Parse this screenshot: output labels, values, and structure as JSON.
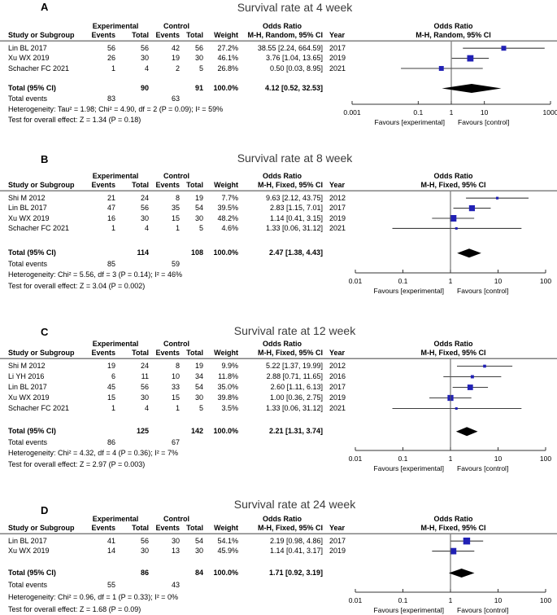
{
  "colors": {
    "square": "#2121b5",
    "diamond": "#000000",
    "ci_line": "#3f3f3f",
    "axis": "#333333",
    "center_line": "#595959",
    "header_rule": "#808080",
    "title_text": "#3b3b3b"
  },
  "table_headers": {
    "group_experimental": "Experimental",
    "group_control": "Control",
    "group_odds_ratio": "Odds Ratio",
    "study": "Study or Subgroup",
    "events": "Events",
    "total": "Total",
    "weight": "Weight",
    "year": "Year"
  },
  "chart_data": [
    {
      "type": "forest",
      "panel": "A",
      "title": "Survival rate at 4 week",
      "effect_label": "M-H, Random, 95% CI",
      "axis": {
        "scale": "log",
        "min": 0.001,
        "max": 1000,
        "ticks": [
          0.001,
          0.1,
          1,
          10,
          1000
        ]
      },
      "favours_left": "Favours [experimental]",
      "favours_right": "Favours [control]",
      "studies": [
        {
          "name": "Lin BL 2017",
          "exp_events": 56,
          "exp_total": 56,
          "ctrl_events": 42,
          "ctrl_total": 56,
          "weight": "27.2%",
          "weight_pct": 27.2,
          "or": 38.55,
          "ci_low": 2.24,
          "ci_high": 664.59,
          "or_ci": "38.55 [2.24, 664.59]",
          "year": "2017"
        },
        {
          "name": "Xu WX 2019",
          "exp_events": 26,
          "exp_total": 30,
          "ctrl_events": 19,
          "ctrl_total": 30,
          "weight": "46.1%",
          "weight_pct": 46.1,
          "or": 3.76,
          "ci_low": 1.04,
          "ci_high": 13.65,
          "or_ci": "3.76 [1.04, 13.65]",
          "year": "2019"
        },
        {
          "name": "Schacher FC 2021",
          "exp_events": 1,
          "exp_total": 4,
          "ctrl_events": 2,
          "ctrl_total": 5,
          "weight": "26.8%",
          "weight_pct": 26.8,
          "or": 0.5,
          "ci_low": 0.03,
          "ci_high": 8.95,
          "or_ci": "0.50 [0.03, 8.95]",
          "year": "2021"
        }
      ],
      "total": {
        "label": "Total (95% CI)",
        "exp_total": 90,
        "ctrl_total": 91,
        "weight": "100.0%",
        "or": 4.12,
        "ci_low": 0.52,
        "ci_high": 32.53,
        "or_ci": "4.12 [0.52, 32.53]"
      },
      "total_events": {
        "label": "Total events",
        "exp": 83,
        "ctrl": 63
      },
      "heterogeneity": "Heterogeneity: Tau² = 1.98; Chi² = 4.90, df = 2 (P = 0.09); I² = 59%",
      "overall_effect": "Test for overall effect: Z = 1.34 (P = 0.18)"
    },
    {
      "type": "forest",
      "panel": "B",
      "title": "Survival rate at 8 week",
      "effect_label": "M-H, Fixed, 95% CI",
      "axis": {
        "scale": "log",
        "min": 0.01,
        "max": 100,
        "ticks": [
          0.01,
          0.1,
          1,
          10,
          100
        ]
      },
      "favours_left": "Favours [experimental]",
      "favours_right": "Favours [control]",
      "studies": [
        {
          "name": "Shi M 2012",
          "exp_events": 21,
          "exp_total": 24,
          "ctrl_events": 8,
          "ctrl_total": 19,
          "weight": "7.7%",
          "weight_pct": 7.7,
          "or": 9.63,
          "ci_low": 2.12,
          "ci_high": 43.75,
          "or_ci": "9.63 [2.12, 43.75]",
          "year": "2012"
        },
        {
          "name": "Lin BL 2017",
          "exp_events": 47,
          "exp_total": 56,
          "ctrl_events": 35,
          "ctrl_total": 54,
          "weight": "39.5%",
          "weight_pct": 39.5,
          "or": 2.83,
          "ci_low": 1.15,
          "ci_high": 7.01,
          "or_ci": "2.83 [1.15, 7.01]",
          "year": "2017"
        },
        {
          "name": "Xu WX 2019",
          "exp_events": 16,
          "exp_total": 30,
          "ctrl_events": 15,
          "ctrl_total": 30,
          "weight": "48.2%",
          "weight_pct": 48.2,
          "or": 1.14,
          "ci_low": 0.41,
          "ci_high": 3.15,
          "or_ci": "1.14 [0.41, 3.15]",
          "year": "2019"
        },
        {
          "name": "Schacher FC 2021",
          "exp_events": 1,
          "exp_total": 4,
          "ctrl_events": 1,
          "ctrl_total": 5,
          "weight": "4.6%",
          "weight_pct": 4.6,
          "or": 1.33,
          "ci_low": 0.06,
          "ci_high": 31.12,
          "or_ci": "1.33 [0.06, 31.12]",
          "year": "2021"
        }
      ],
      "total": {
        "label": "Total (95% CI)",
        "exp_total": 114,
        "ctrl_total": 108,
        "weight": "100.0%",
        "or": 2.47,
        "ci_low": 1.38,
        "ci_high": 4.43,
        "or_ci": "2.47 [1.38, 4.43]"
      },
      "total_events": {
        "label": "Total events",
        "exp": 85,
        "ctrl": 59
      },
      "heterogeneity": "Heterogeneity: Chi² = 5.56, df = 3 (P = 0.14); I² = 46%",
      "overall_effect": "Test for overall effect: Z = 3.04 (P = 0.002)"
    },
    {
      "type": "forest",
      "panel": "C",
      "title": "Survival rate at 12 week",
      "effect_label": "M-H, Fixed, 95% CI",
      "axis": {
        "scale": "log",
        "min": 0.01,
        "max": 100,
        "ticks": [
          0.01,
          0.1,
          1,
          10,
          100
        ]
      },
      "favours_left": "Favours [experimental]",
      "favours_right": "Favours [control]",
      "studies": [
        {
          "name": "Shi M 2012",
          "exp_events": 19,
          "exp_total": 24,
          "ctrl_events": 8,
          "ctrl_total": 19,
          "weight": "9.9%",
          "weight_pct": 9.9,
          "or": 5.22,
          "ci_low": 1.37,
          "ci_high": 19.99,
          "or_ci": "5.22 [1.37, 19.99]",
          "year": "2012"
        },
        {
          "name": "Li YH 2016",
          "exp_events": 6,
          "exp_total": 11,
          "ctrl_events": 10,
          "ctrl_total": 34,
          "weight": "11.8%",
          "weight_pct": 11.8,
          "or": 2.88,
          "ci_low": 0.71,
          "ci_high": 11.65,
          "or_ci": "2.88 [0.71, 11.65]",
          "year": "2016"
        },
        {
          "name": "Lin BL 2017",
          "exp_events": 45,
          "exp_total": 56,
          "ctrl_events": 33,
          "ctrl_total": 54,
          "weight": "35.0%",
          "weight_pct": 35.0,
          "or": 2.6,
          "ci_low": 1.11,
          "ci_high": 6.13,
          "or_ci": "2.60 [1.11, 6.13]",
          "year": "2017"
        },
        {
          "name": "Xu WX 2019",
          "exp_events": 15,
          "exp_total": 30,
          "ctrl_events": 15,
          "ctrl_total": 30,
          "weight": "39.8%",
          "weight_pct": 39.8,
          "or": 1.0,
          "ci_low": 0.36,
          "ci_high": 2.75,
          "or_ci": "1.00 [0.36, 2.75]",
          "year": "2019"
        },
        {
          "name": "Schacher FC 2021",
          "exp_events": 1,
          "exp_total": 4,
          "ctrl_events": 1,
          "ctrl_total": 5,
          "weight": "3.5%",
          "weight_pct": 3.5,
          "or": 1.33,
          "ci_low": 0.06,
          "ci_high": 31.12,
          "or_ci": "1.33 [0.06, 31.12]",
          "year": "2021"
        }
      ],
      "total": {
        "label": "Total (95% CI)",
        "exp_total": 125,
        "ctrl_total": 142,
        "weight": "100.0%",
        "or": 2.21,
        "ci_low": 1.31,
        "ci_high": 3.74,
        "or_ci": "2.21 [1.31, 3.74]"
      },
      "total_events": {
        "label": "Total events",
        "exp": 86,
        "ctrl": 67
      },
      "heterogeneity": "Heterogeneity: Chi² = 4.32, df = 4 (P = 0.36); I² = 7%",
      "overall_effect": "Test for overall effect: Z = 2.97 (P = 0.003)"
    },
    {
      "type": "forest",
      "panel": "D",
      "title": "Survival rate at 24 week",
      "effect_label": "M-H, Fixed, 95% CI",
      "axis": {
        "scale": "log",
        "min": 0.01,
        "max": 100,
        "ticks": [
          0.01,
          0.1,
          1,
          10,
          100
        ]
      },
      "favours_left": "Favours [experimental]",
      "favours_right": "Favours [control]",
      "studies": [
        {
          "name": "Lin BL 2017",
          "exp_events": 41,
          "exp_total": 56,
          "ctrl_events": 30,
          "ctrl_total": 54,
          "weight": "54.1%",
          "weight_pct": 54.1,
          "or": 2.19,
          "ci_low": 0.98,
          "ci_high": 4.86,
          "or_ci": "2.19 [0.98, 4.86]",
          "year": "2017"
        },
        {
          "name": "Xu WX 2019",
          "exp_events": 14,
          "exp_total": 30,
          "ctrl_events": 13,
          "ctrl_total": 30,
          "weight": "45.9%",
          "weight_pct": 45.9,
          "or": 1.14,
          "ci_low": 0.41,
          "ci_high": 3.17,
          "or_ci": "1.14 [0.41, 3.17]",
          "year": "2019"
        }
      ],
      "total": {
        "label": "Total (95% CI)",
        "exp_total": 86,
        "ctrl_total": 84,
        "weight": "100.0%",
        "or": 1.71,
        "ci_low": 0.92,
        "ci_high": 3.19,
        "or_ci": "1.71 [0.92, 3.19]"
      },
      "total_events": {
        "label": "Total events",
        "exp": 55,
        "ctrl": 43
      },
      "heterogeneity": "Heterogeneity: Chi² = 0.96, df = 1 (P = 0.33); I² = 0%",
      "overall_effect": "Test for overall effect: Z = 1.68 (P = 0.09)"
    }
  ]
}
